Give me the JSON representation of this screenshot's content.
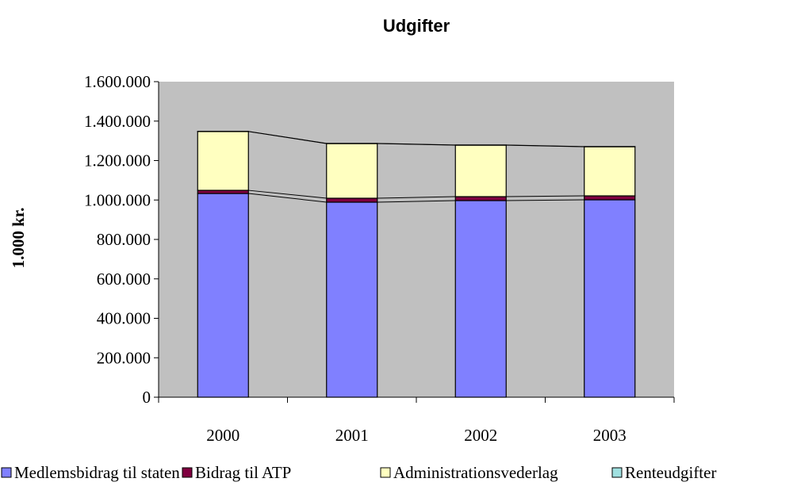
{
  "chart_data": {
    "type": "stacked_bar",
    "title": "Udgifter",
    "y_label": "1.000 kr.",
    "categories": [
      "2000",
      "2001",
      "2002",
      "2003"
    ],
    "series": [
      {
        "name": "Medlemsbidrag til staten",
        "color": "#8080ff",
        "values": [
          1033000,
          989000,
          997000,
          1001000
        ]
      },
      {
        "name": "Bidrag til ATP",
        "color": "#800040",
        "values": [
          16000,
          20000,
          20000,
          20000
        ]
      },
      {
        "name": "Administrationsvederlag",
        "color": "#ffffc0",
        "values": [
          298000,
          277000,
          261000,
          249000
        ]
      },
      {
        "name": "Renteudgifter",
        "color": "#a0e0e0",
        "values": [
          1000,
          1000,
          1000,
          1000
        ]
      }
    ],
    "ylim": [
      0,
      1600000
    ],
    "yticks": [
      0,
      {
        "value": 200000,
        "label": "200.000"
      },
      {
        "value": 400000,
        "label": "400.000"
      },
      {
        "value": 600000,
        "label": "600.000"
      },
      {
        "value": 800000,
        "label": "800.000"
      },
      {
        "value": 1000000,
        "label": "1.000.000"
      },
      {
        "value": 1200000,
        "label": "1.200.000"
      },
      {
        "value": 1400000,
        "label": "1.400.000"
      },
      {
        "value": 1600000,
        "label": "1.600.000"
      }
    ],
    "background": "#c0c0c0"
  }
}
